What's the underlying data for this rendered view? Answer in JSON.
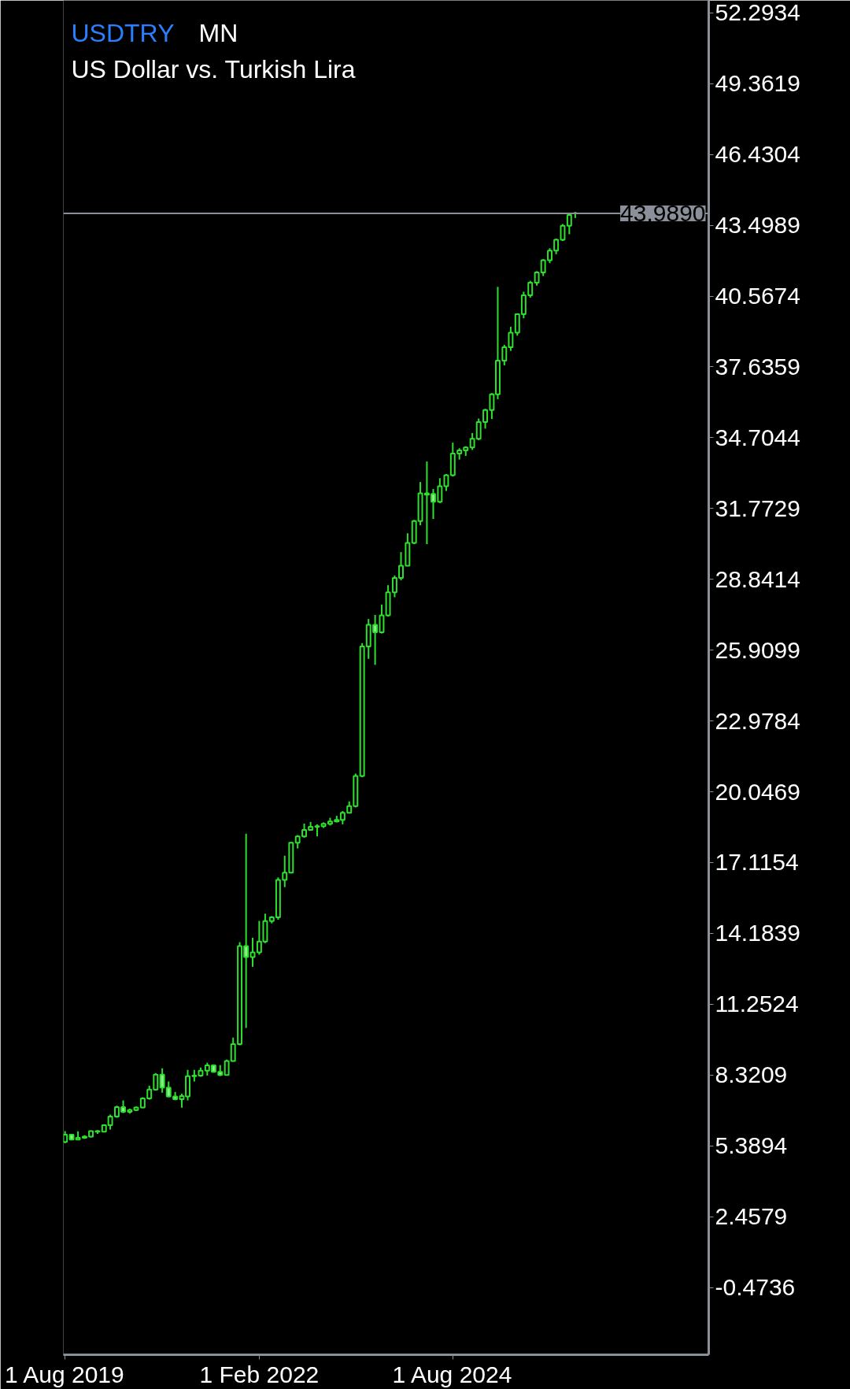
{
  "chart_data": {
    "type": "candlestick",
    "title": "USDTRY",
    "subtitle": "US Dollar  vs.  Turkish Lira",
    "annotations": [
      "MN"
    ],
    "color": "#2ee02e",
    "x": [
      "2019-08",
      "2019-09",
      "2019-10",
      "2019-11",
      "2019-12",
      "2020-01",
      "2020-02",
      "2020-03",
      "2020-04",
      "2020-05",
      "2020-06",
      "2020-07",
      "2020-08",
      "2020-09",
      "2020-10",
      "2020-11",
      "2020-12",
      "2021-01",
      "2021-02",
      "2021-03",
      "2021-04",
      "2021-05",
      "2021-06",
      "2021-07",
      "2021-08",
      "2021-09",
      "2021-10",
      "2021-11",
      "2021-12",
      "2022-01",
      "2022-02",
      "2022-03",
      "2022-04",
      "2022-05",
      "2022-06",
      "2022-07",
      "2022-08",
      "2022-09",
      "2022-10",
      "2022-11",
      "2022-12",
      "2023-01",
      "2023-02",
      "2023-03",
      "2023-04",
      "2023-05",
      "2023-06",
      "2023-07",
      "2023-08",
      "2023-09",
      "2023-10",
      "2023-11",
      "2023-12",
      "2024-01",
      "2024-02",
      "2024-03",
      "2024-04",
      "2024-05",
      "2024-06",
      "2024-07",
      "2024-08",
      "2024-09",
      "2024-10",
      "2024-11",
      "2024-12",
      "2025-01",
      "2025-02",
      "2025-03",
      "2025-04",
      "2025-05",
      "2025-06",
      "2025-07",
      "2025-08",
      "2025-09",
      "2025-10",
      "2025-11",
      "2025-12",
      "2026-01",
      "2026-02",
      "2026-03"
    ],
    "ohlc": [
      [
        5.55,
        6.0,
        5.5,
        5.85
      ],
      [
        5.85,
        5.88,
        5.62,
        5.65
      ],
      [
        5.65,
        5.99,
        5.62,
        5.72
      ],
      [
        5.72,
        5.83,
        5.68,
        5.77
      ],
      [
        5.77,
        6.02,
        5.74,
        6.0
      ],
      [
        6.0,
        6.04,
        5.88,
        5.97
      ],
      [
        5.97,
        6.28,
        5.95,
        6.24
      ],
      [
        6.24,
        6.68,
        6.06,
        6.6
      ],
      [
        6.6,
        7.05,
        6.55,
        6.99
      ],
      [
        6.99,
        7.27,
        6.75,
        6.8
      ],
      [
        6.8,
        6.93,
        6.72,
        6.87
      ],
      [
        6.87,
        7.02,
        6.83,
        6.98
      ],
      [
        6.98,
        7.4,
        6.95,
        7.35
      ],
      [
        7.35,
        7.88,
        7.3,
        7.72
      ],
      [
        7.72,
        8.4,
        7.68,
        8.34
      ],
      [
        8.34,
        8.6,
        7.59,
        7.8
      ],
      [
        7.8,
        8.05,
        7.4,
        7.43
      ],
      [
        7.43,
        7.62,
        7.28,
        7.32
      ],
      [
        7.32,
        7.55,
        6.97,
        7.45
      ],
      [
        7.43,
        8.53,
        7.27,
        8.27
      ],
      [
        8.27,
        8.53,
        8.05,
        8.3
      ],
      [
        8.3,
        8.63,
        8.25,
        8.5
      ],
      [
        8.5,
        8.83,
        8.3,
        8.72
      ],
      [
        8.72,
        8.76,
        8.42,
        8.45
      ],
      [
        8.45,
        8.73,
        8.28,
        8.32
      ],
      [
        8.32,
        8.96,
        8.3,
        8.9
      ],
      [
        8.9,
        9.87,
        8.88,
        9.6
      ],
      [
        9.6,
        13.82,
        9.55,
        13.66
      ],
      [
        13.66,
        18.31,
        10.27,
        13.2
      ],
      [
        13.2,
        14.0,
        12.8,
        13.4
      ],
      [
        13.4,
        14.7,
        13.3,
        13.85
      ],
      [
        13.85,
        15.0,
        13.78,
        14.69
      ],
      [
        14.69,
        14.9,
        14.6,
        14.85
      ],
      [
        14.85,
        16.5,
        14.75,
        16.4
      ],
      [
        16.4,
        17.4,
        16.1,
        16.7
      ],
      [
        16.7,
        17.96,
        16.67,
        17.94
      ],
      [
        17.94,
        18.25,
        17.7,
        18.2
      ],
      [
        18.2,
        18.73,
        18.15,
        18.47
      ],
      [
        18.47,
        18.8,
        18.45,
        18.6
      ],
      [
        18.6,
        18.7,
        18.2,
        18.62
      ],
      [
        18.62,
        18.78,
        18.55,
        18.72
      ],
      [
        18.72,
        18.97,
        18.65,
        18.82
      ],
      [
        18.82,
        19.05,
        18.78,
        18.88
      ],
      [
        18.88,
        19.25,
        18.7,
        19.18
      ],
      [
        19.18,
        19.65,
        19.15,
        19.45
      ],
      [
        19.45,
        20.8,
        19.4,
        20.7
      ],
      [
        20.7,
        26.2,
        20.65,
        26.06
      ],
      [
        26.06,
        27.2,
        25.55,
        26.96
      ],
      [
        26.96,
        27.37,
        25.3,
        26.65
      ],
      [
        26.65,
        27.8,
        26.6,
        27.35
      ],
      [
        27.35,
        28.6,
        27.3,
        28.3
      ],
      [
        28.3,
        29.0,
        28.1,
        28.9
      ],
      [
        28.9,
        29.97,
        28.8,
        29.4
      ],
      [
        29.4,
        30.75,
        29.4,
        30.35
      ],
      [
        30.35,
        31.3,
        30.3,
        31.25
      ],
      [
        31.25,
        32.87,
        31.08,
        32.4
      ],
      [
        32.4,
        33.72,
        30.3,
        32.35
      ],
      [
        32.38,
        32.58,
        31.34,
        32.05
      ],
      [
        32.05,
        33.03,
        32.0,
        32.7
      ],
      [
        32.7,
        33.2,
        32.5,
        33.15
      ],
      [
        33.15,
        34.5,
        33.1,
        34.05
      ],
      [
        34.05,
        34.27,
        33.8,
        34.18
      ],
      [
        34.18,
        34.35,
        33.95,
        34.3
      ],
      [
        34.3,
        34.9,
        34.2,
        34.66
      ],
      [
        34.66,
        35.5,
        34.6,
        35.35
      ],
      [
        35.35,
        35.9,
        35.08,
        35.85
      ],
      [
        35.85,
        36.55,
        35.48,
        36.5
      ],
      [
        36.5,
        40.95,
        36.3,
        37.9
      ],
      [
        37.9,
        38.55,
        37.7,
        38.45
      ],
      [
        38.45,
        39.3,
        38.3,
        39.05
      ],
      [
        39.05,
        39.85,
        38.93,
        39.82
      ],
      [
        39.82,
        40.75,
        39.65,
        40.6
      ],
      [
        40.6,
        41.2,
        40.5,
        41.12
      ],
      [
        41.12,
        41.6,
        41.0,
        41.55
      ],
      [
        41.55,
        42.1,
        41.4,
        42.05
      ],
      [
        42.05,
        42.55,
        41.93,
        42.45
      ],
      [
        42.45,
        42.95,
        42.3,
        42.9
      ],
      [
        42.9,
        43.55,
        42.85,
        43.48
      ],
      [
        43.48,
        44.0,
        43.13,
        43.93
      ],
      [
        44.0,
        44.05,
        43.8,
        43.989
      ]
    ],
    "xlim": [
      "2019-07-24",
      "2027-11-20"
    ],
    "xticks": [
      {
        "value": "2019-08-01",
        "label": "1 Aug 2019"
      },
      {
        "value": "2022-02-01",
        "label": "1 Feb 2022"
      },
      {
        "value": "2024-08-01",
        "label": "1 Aug 2024"
      }
    ],
    "ylim": [
      -3.26,
      52.81
    ],
    "yticks": [
      -0.4736,
      2.4579,
      5.3894,
      8.3209,
      11.2524,
      14.1839,
      17.1154,
      20.0469,
      22.9784,
      25.9099,
      28.8414,
      31.7729,
      34.7044,
      37.6359,
      40.5674,
      43.4989,
      46.4304,
      49.3619,
      52.2934
    ],
    "ref_lines": [
      {
        "axis": "y",
        "value": 43.989,
        "label": "43.9890",
        "color": "#8a8f99"
      }
    ],
    "grid": false
  }
}
